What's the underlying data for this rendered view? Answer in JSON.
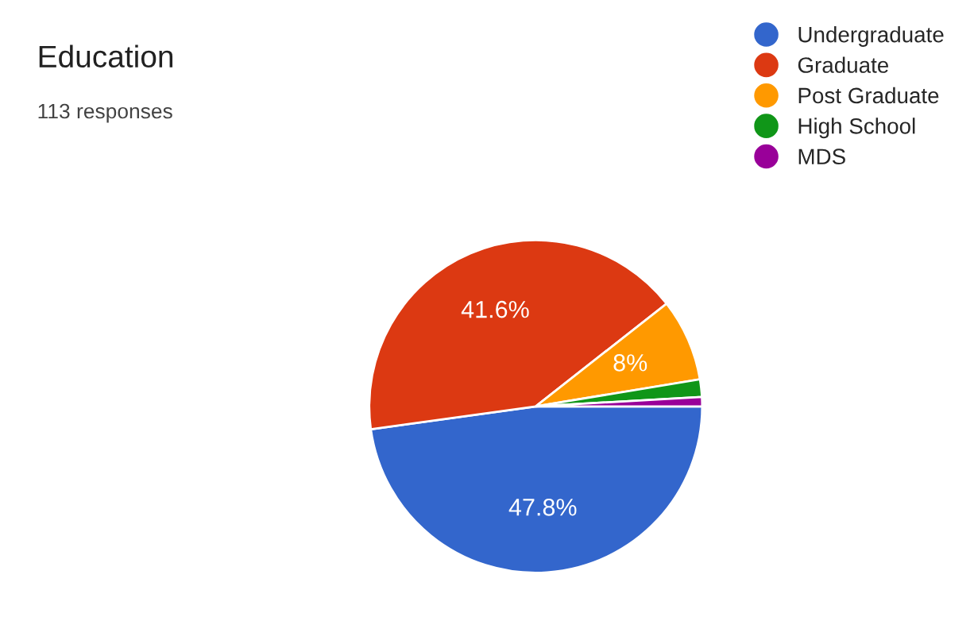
{
  "chart_data": {
    "type": "pie",
    "title": "Education",
    "subtitle": "113 responses",
    "categories": [
      "Undergraduate",
      "Graduate",
      "Post Graduate",
      "High School",
      "MDS"
    ],
    "values": [
      47.8,
      41.6,
      8,
      1.7,
      0.9
    ],
    "colors": [
      "#3366cc",
      "#dc3912",
      "#ff9900",
      "#109618",
      "#990099"
    ],
    "value_labels": [
      "47.8%",
      "41.6%",
      "8%",
      null,
      null
    ],
    "legend": "top right"
  }
}
